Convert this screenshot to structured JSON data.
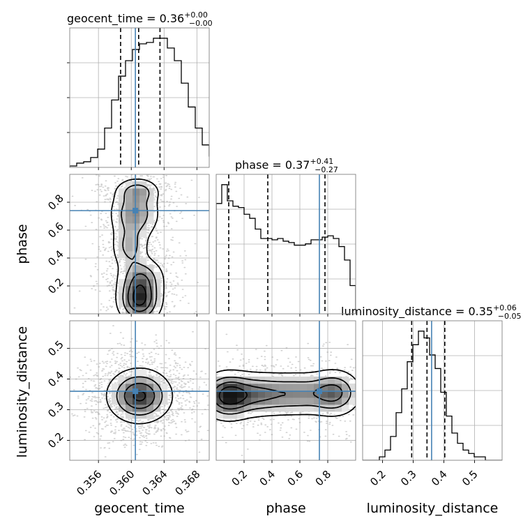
{
  "chart_data": {
    "type": "corner",
    "parameters": [
      {
        "key": "geocent_time",
        "label": "geocent_time",
        "range": [
          0.3525,
          0.3695
        ],
        "ticks": [
          0.356,
          0.36,
          0.364,
          0.368
        ],
        "tick_labels": [
          "0.356",
          "0.360",
          "0.364",
          "0.368"
        ],
        "truth": 0.3605,
        "quantiles": [
          0.3587,
          0.3609,
          0.3635
        ],
        "title": {
          "prefix": "geocent_time = 0.36",
          "plus": "+0.00",
          "minus": "−0.00"
        },
        "hist_edges_start": 0.3525,
        "hist_bin_width": 0.00085,
        "hist_counts": [
          1,
          3,
          4,
          7,
          13,
          28,
          48,
          65,
          76,
          84,
          88,
          89,
          92,
          92,
          85,
          76,
          60,
          43,
          28,
          16,
          8,
          5,
          2,
          1,
          0
        ]
      },
      {
        "key": "phase",
        "label": "phase",
        "range": [
          0.0,
          1.0
        ],
        "ticks": [
          0.2,
          0.4,
          0.6,
          0.8
        ],
        "tick_labels": [
          "0.2",
          "0.4",
          "0.6",
          "0.8"
        ],
        "truth": 0.74,
        "quantiles": [
          0.09,
          0.37,
          0.78
        ],
        "title": {
          "prefix": "phase = 0.37",
          "plus": "+0.41",
          "minus": "−0.27"
        },
        "hist_edges_start": 0.0,
        "hist_bin_width": 0.04,
        "hist_counts": [
          82,
          96,
          84,
          80,
          79,
          74,
          71,
          63,
          56,
          56,
          55,
          56,
          54,
          53,
          51,
          51,
          52,
          55,
          55,
          57,
          58,
          56,
          50,
          40,
          21
        ]
      },
      {
        "key": "luminosity_distance",
        "label": "luminosity_distance",
        "range": [
          0.135,
          0.59
        ],
        "ticks": [
          0.2,
          0.3,
          0.4,
          0.5
        ],
        "tick_labels": [
          "0.2",
          "0.3",
          "0.4",
          "0.5"
        ],
        "truth": 0.36,
        "quantiles": [
          0.295,
          0.345,
          0.403
        ],
        "title": {
          "prefix": "luminosity_distance = 0.35",
          "plus": "+0.06",
          "minus": "−0.05"
        },
        "hist_edges_start": 0.135,
        "hist_bin_width": 0.0182,
        "hist_counts": [
          0,
          0,
          0,
          1,
          3,
          7,
          14,
          21,
          29,
          34,
          38,
          36,
          31,
          27,
          20,
          13,
          8,
          5,
          3,
          2,
          1,
          1,
          0,
          0,
          0
        ]
      }
    ],
    "density_blobs": {
      "phase_vs_geocent_time": [
        {
          "x": 0.361,
          "y": 0.1,
          "sx": 0.0014,
          "sy": 0.09,
          "w": 1.0
        },
        {
          "x": 0.3612,
          "y": 0.26,
          "sx": 0.0015,
          "sy": 0.08,
          "w": 0.55
        },
        {
          "x": 0.3598,
          "y": 0.48,
          "sx": 0.0012,
          "sy": 0.09,
          "w": 0.45
        },
        {
          "x": 0.3604,
          "y": 0.72,
          "sx": 0.0016,
          "sy": 0.1,
          "w": 0.62
        },
        {
          "x": 0.3608,
          "y": 0.88,
          "sx": 0.0014,
          "sy": 0.05,
          "w": 0.45
        }
      ],
      "luminosity_distance_vs_geocent_time": [
        {
          "x": 0.361,
          "y": 0.345,
          "sx": 0.002,
          "sy": 0.045,
          "w": 1.0
        }
      ],
      "luminosity_distance_vs_phase": [
        {
          "x": 0.08,
          "y": 0.345,
          "sx": 0.1,
          "sy": 0.04,
          "w": 1.0
        },
        {
          "x": 0.3,
          "y": 0.35,
          "sx": 0.14,
          "sy": 0.038,
          "w": 0.65
        },
        {
          "x": 0.6,
          "y": 0.352,
          "sx": 0.14,
          "sy": 0.038,
          "w": 0.55
        },
        {
          "x": 0.85,
          "y": 0.355,
          "sx": 0.1,
          "sy": 0.04,
          "w": 0.7
        }
      ]
    },
    "contour_levels": [
      0.12,
      0.35,
      0.6,
      0.85
    ],
    "colors": {
      "truth": "#4682b4",
      "hist": "#000000",
      "grid": "#b0b0b0",
      "frame": "#808080"
    },
    "grid": true
  }
}
